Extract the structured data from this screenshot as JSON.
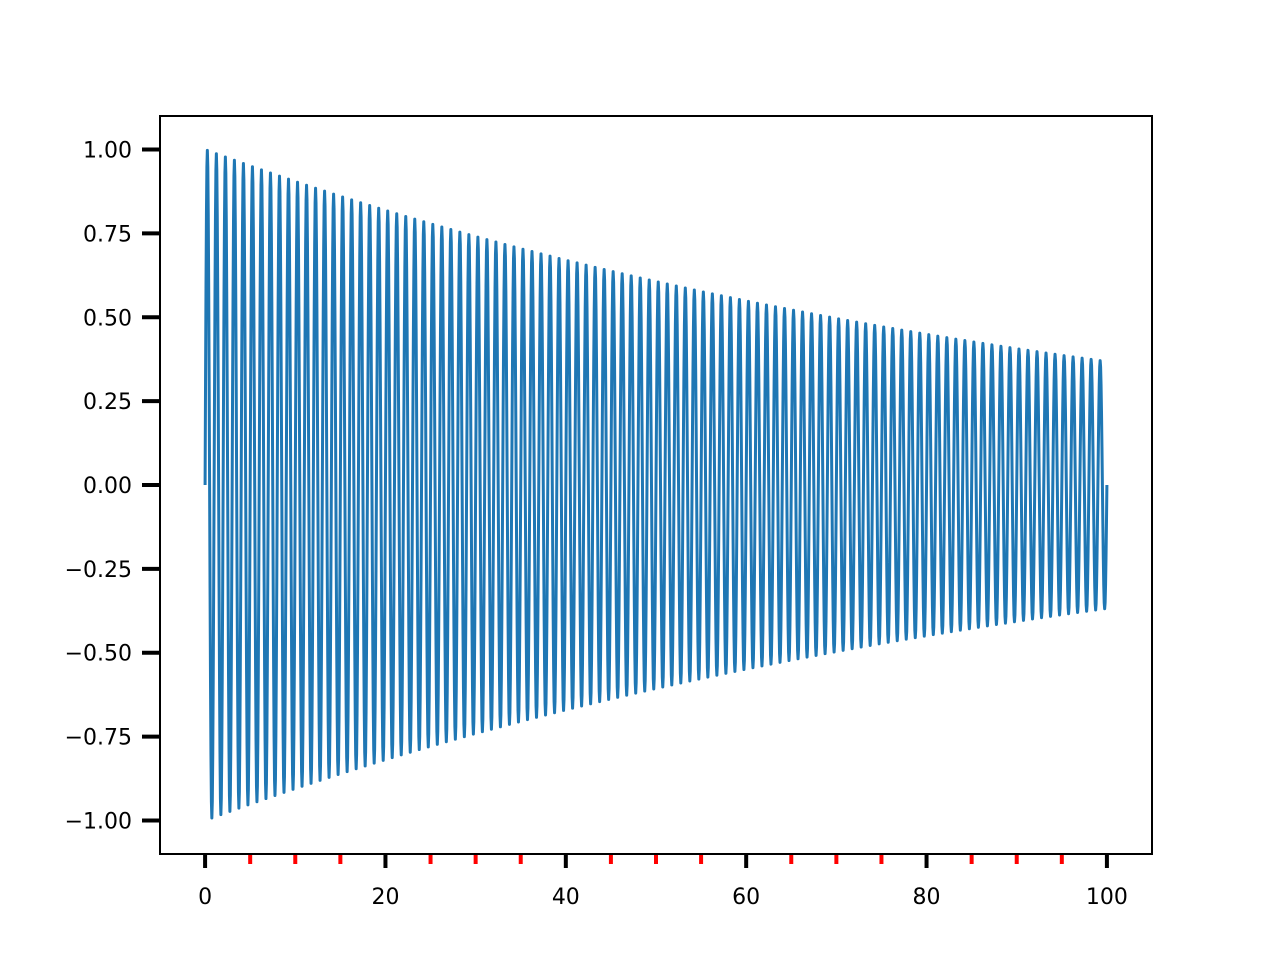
{
  "chart_data": {
    "type": "line",
    "title": "",
    "xlabel": "",
    "ylabel": "",
    "xlim": [
      -5,
      105
    ],
    "ylim": [
      -1.1,
      1.1
    ],
    "grid": false,
    "legend": "none",
    "function": {
      "description_hidden": false,
      "samples": 2000,
      "x_range": [
        0,
        100
      ],
      "frequency_cycles_per_unit": 1.0,
      "decay_rate": 0.01,
      "amplitude_start": 1.0,
      "amplitude_end": 0.37
    },
    "series": [
      {
        "color": "#1f77b4",
        "kind": "damped-sine"
      }
    ],
    "x_major_ticks": [
      0,
      20,
      40,
      60,
      80,
      100
    ],
    "x_major_tick_labels": [
      "0",
      "20",
      "40",
      "60",
      "80",
      "100"
    ],
    "x_minor_ticks": [
      5,
      10,
      15,
      25,
      30,
      35,
      45,
      50,
      55,
      65,
      70,
      75,
      85,
      90,
      95
    ],
    "x_minor_tick_color": "#ff0000",
    "y_ticks": [
      -1.0,
      -0.75,
      -0.5,
      -0.25,
      0.0,
      0.25,
      0.5,
      0.75,
      1.0
    ],
    "y_tick_labels": [
      "−1.00",
      "−0.75",
      "−0.50",
      "−0.25",
      "0.00",
      "0.25",
      "0.50",
      "0.75",
      "1.00"
    ]
  }
}
